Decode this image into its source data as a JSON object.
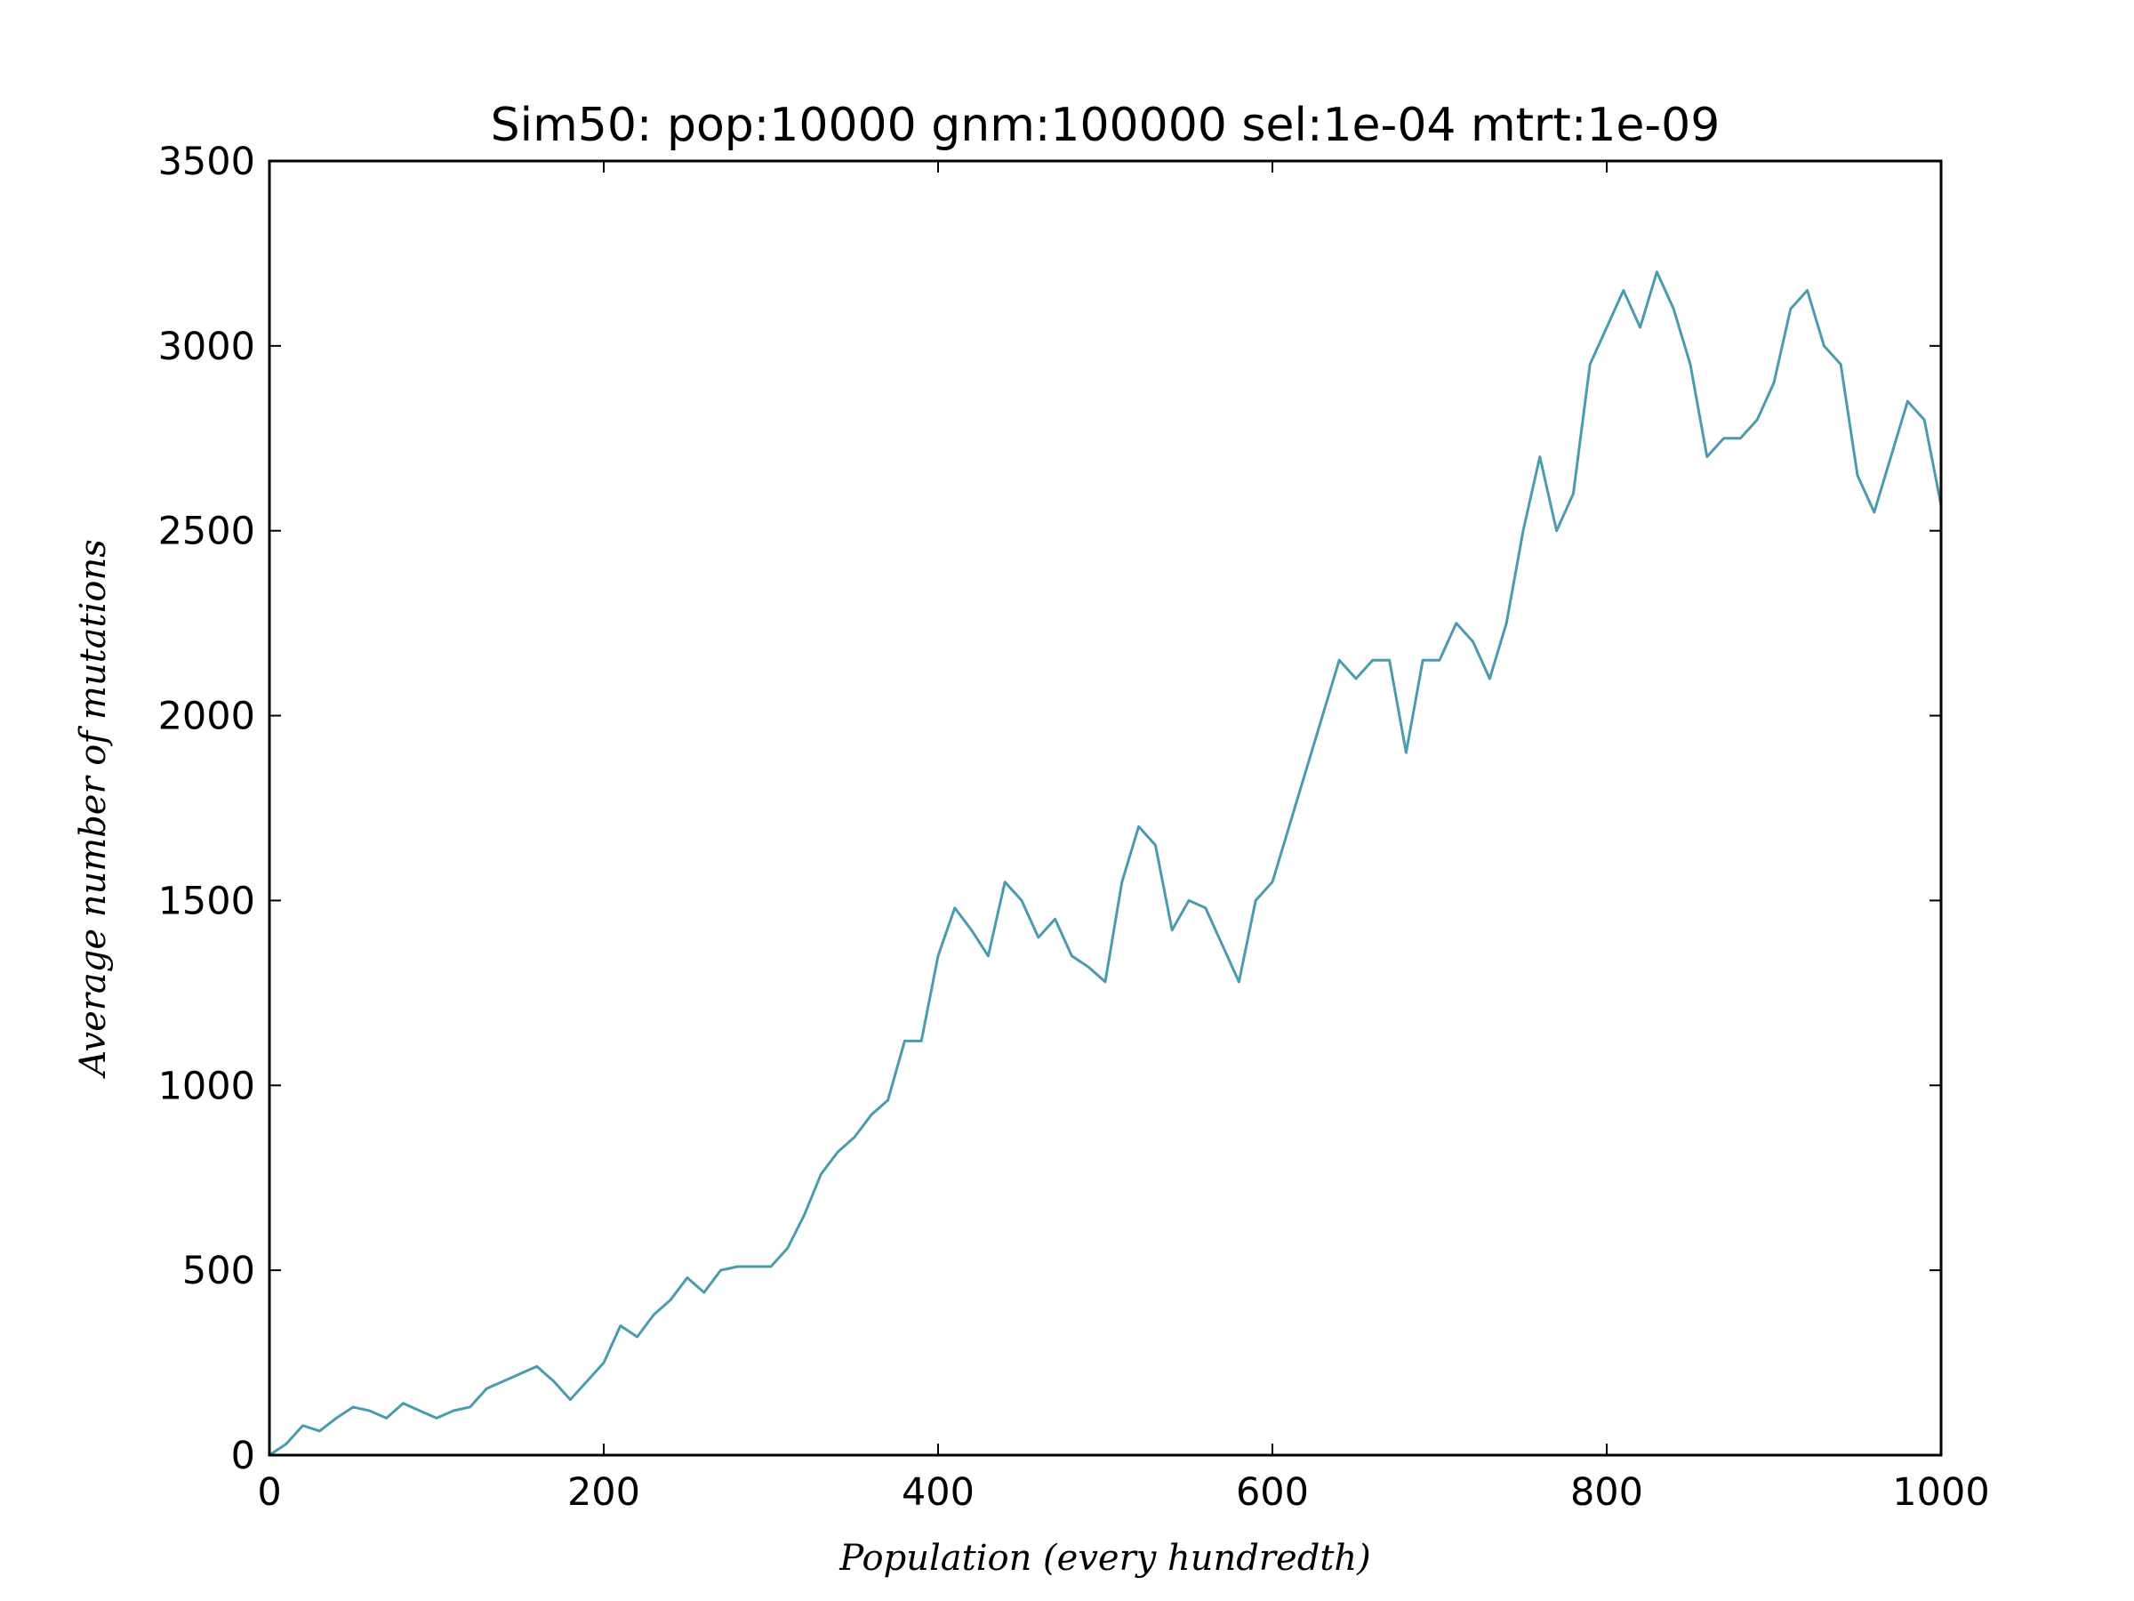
{
  "chart_data": {
    "type": "line",
    "title": "Sim50: pop:10000 gnm:100000 sel:1e-04 mtrt:1e-09",
    "x_label": "Population (every hundredth)",
    "y_label": "Average number of mutations",
    "x": [
      0,
      10,
      20,
      30,
      40,
      50,
      60,
      70,
      80,
      90,
      100,
      110,
      120,
      130,
      140,
      150,
      160,
      170,
      180,
      190,
      200,
      210,
      220,
      230,
      240,
      250,
      260,
      270,
      280,
      290,
      300,
      310,
      320,
      330,
      340,
      350,
      360,
      370,
      380,
      390,
      400,
      410,
      420,
      430,
      440,
      450,
      460,
      470,
      480,
      490,
      500,
      510,
      520,
      530,
      540,
      550,
      560,
      570,
      580,
      590,
      600,
      610,
      620,
      630,
      640,
      650,
      660,
      670,
      680,
      690,
      700,
      710,
      720,
      730,
      740,
      750,
      760,
      770,
      780,
      790,
      800,
      810,
      820,
      830,
      840,
      850,
      860,
      870,
      880,
      890,
      900,
      910,
      920,
      930,
      940,
      950,
      960,
      970,
      980,
      990,
      1000
    ],
    "series": [
      {
        "name": "mutations",
        "color": "#4a9bb0",
        "values": [
          0,
          30,
          80,
          65,
          100,
          130,
          120,
          100,
          140,
          120,
          100,
          120,
          130,
          180,
          200,
          220,
          240,
          200,
          150,
          200,
          250,
          350,
          320,
          380,
          420,
          480,
          440,
          500,
          510,
          510,
          510,
          560,
          650,
          760,
          820,
          860,
          920,
          960,
          1120,
          1120,
          1350,
          1480,
          1420,
          1350,
          1550,
          1500,
          1400,
          1450,
          1350,
          1320,
          1280,
          1550,
          1700,
          1650,
          1420,
          1500,
          1480,
          1380,
          1280,
          1500,
          1550,
          1700,
          1850,
          2000,
          2150,
          2100,
          2150,
          2150,
          1900,
          2150,
          2150,
          2250,
          2200,
          2100,
          2250,
          2500,
          2700,
          2500,
          2600,
          2950,
          3050,
          3150,
          3050,
          3200,
          3100,
          2950,
          2700,
          2750,
          2750,
          2800,
          2900,
          3100,
          3150,
          3000,
          2950,
          2650,
          2550,
          2700,
          2850,
          2800,
          2570
        ]
      }
    ],
    "xlim": [
      0,
      1000
    ],
    "xticks": [
      0,
      200,
      400,
      600,
      800,
      1000
    ],
    "ylim": [
      0,
      3500
    ],
    "yticks": [
      0,
      500,
      1000,
      1500,
      2000,
      2500,
      3000,
      3500
    ],
    "grid": false
  }
}
